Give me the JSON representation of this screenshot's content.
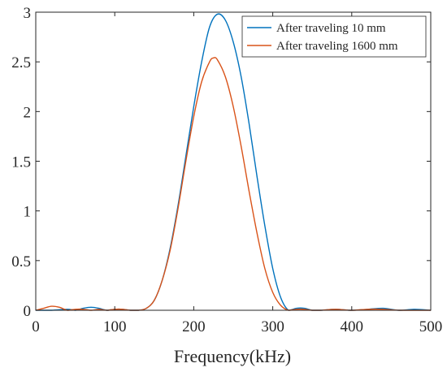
{
  "chart_data": {
    "type": "line",
    "title": "",
    "xlabel": "Frequency(kHz)",
    "ylabel": "",
    "xlim": [
      0,
      500
    ],
    "ylim": [
      0,
      3
    ],
    "xticks": [
      0,
      100,
      200,
      300,
      400,
      500
    ],
    "yticks": [
      0,
      0.5,
      1,
      1.5,
      2,
      2.5,
      3
    ],
    "xtick_labels": [
      "0",
      "100",
      "200",
      "300",
      "400",
      "500"
    ],
    "ytick_labels": [
      "0",
      "0.5",
      "1",
      "1.5",
      "2",
      "2.5",
      "3"
    ],
    "grid": false,
    "legend_position": "top-right",
    "series": [
      {
        "name": "After traveling 10 mm",
        "color": "#0072BD",
        "x": [
          0,
          20,
          40,
          50,
          60,
          70,
          80,
          90,
          100,
          110,
          120,
          130,
          140,
          150,
          160,
          170,
          180,
          190,
          200,
          210,
          220,
          230,
          240,
          250,
          260,
          270,
          280,
          290,
          300,
          310,
          320,
          330,
          340,
          350,
          360,
          380,
          400,
          420,
          440,
          460,
          480,
          500
        ],
        "values": [
          0.0,
          0.0,
          0.01,
          0.0,
          0.02,
          0.03,
          0.02,
          0.0,
          0.01,
          0.01,
          0.0,
          0.0,
          0.02,
          0.1,
          0.3,
          0.62,
          1.05,
          1.55,
          2.05,
          2.5,
          2.85,
          2.98,
          2.92,
          2.7,
          2.35,
          1.88,
          1.35,
          0.85,
          0.42,
          0.13,
          0.0,
          0.02,
          0.02,
          0.0,
          0.0,
          0.01,
          0.0,
          0.01,
          0.02,
          0.0,
          0.01,
          0.0
        ]
      },
      {
        "name": "After traveling 1600 mm",
        "color": "#D95319",
        "x": [
          0,
          10,
          20,
          30,
          40,
          50,
          60,
          70,
          80,
          90,
          100,
          110,
          120,
          130,
          140,
          150,
          160,
          170,
          180,
          190,
          200,
          210,
          220,
          225,
          230,
          240,
          250,
          260,
          270,
          280,
          290,
          300,
          310,
          320,
          330,
          340,
          350,
          360,
          380,
          400,
          420,
          440,
          460,
          480,
          500
        ],
        "values": [
          0.0,
          0.02,
          0.04,
          0.03,
          0.0,
          0.01,
          0.01,
          0.0,
          0.01,
          0.0,
          0.01,
          0.01,
          0.0,
          0.0,
          0.02,
          0.1,
          0.3,
          0.6,
          1.02,
          1.5,
          1.95,
          2.3,
          2.5,
          2.54,
          2.52,
          2.35,
          2.05,
          1.65,
          1.2,
          0.78,
          0.42,
          0.18,
          0.05,
          0.0,
          0.01,
          0.01,
          0.0,
          0.0,
          0.01,
          0.0,
          0.01,
          0.01,
          0.0,
          0.0,
          0.0
        ]
      }
    ]
  }
}
